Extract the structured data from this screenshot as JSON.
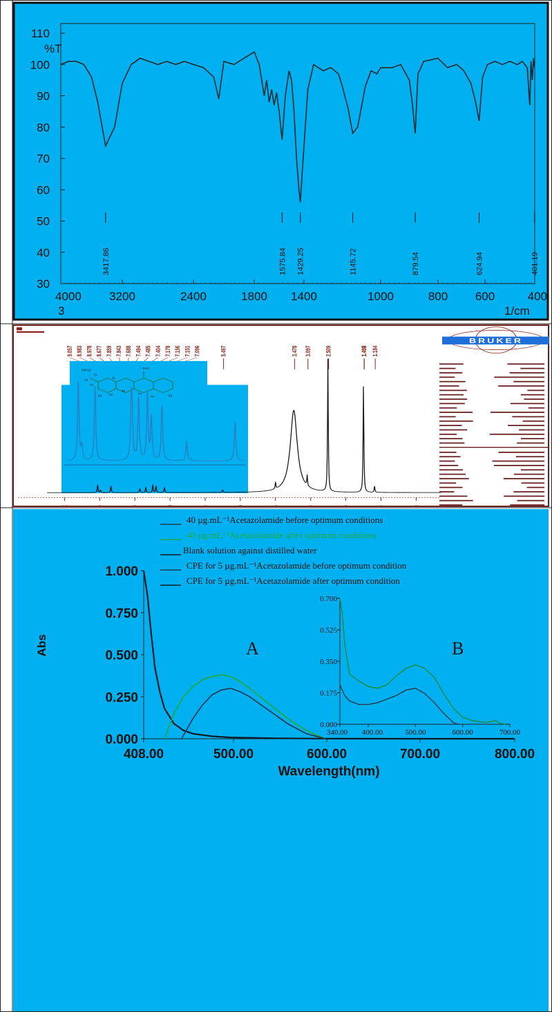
{
  "colors": {
    "panel_blue": "#00b0f0",
    "trace": "#1e2a32",
    "green": "#1faa3c",
    "nmr_border": "#6a1f1f",
    "nmr_red": "#8a1e14"
  },
  "ir": {
    "y_unit": "%T",
    "x_unit": "1/cm",
    "y_ticks": [
      "110",
      "100",
      "90",
      "80",
      "70",
      "60",
      "50",
      "40",
      "30"
    ],
    "x_ticks": [
      "4000",
      "3200",
      "2400",
      "1800",
      "1400",
      "1000",
      "800",
      "600",
      "400"
    ],
    "x_corner": "3",
    "peak_labels": [
      "3417.86",
      "1575.84",
      "1429.25",
      "1145.72",
      "879.54",
      "624.94",
      "401.19"
    ]
  },
  "nmr": {
    "brand": "BRUKER",
    "x_ticks": [
      "10",
      "9",
      "8",
      "7",
      "6",
      "5",
      "4",
      "3",
      "2",
      "1",
      "0"
    ],
    "x_unit": "ppm",
    "shift_labels": [
      "9.057",
      "8.983",
      "8.978",
      "8.677",
      "7.859",
      "7.843",
      "7.688",
      "7.494",
      "7.485",
      "7.404",
      "7.178",
      "7.156",
      "7.151",
      "7.096",
      "5.497",
      "3.478",
      "3.097",
      "2.509",
      "1.498",
      "1.497",
      "1.184"
    ],
    "integrals": [
      "1.00",
      "0.98",
      "1.03",
      "0.97",
      "1.00",
      "1.95",
      "1.02",
      "2.17",
      "1.12"
    ],
    "structure_labels": [
      "NH2",
      "O",
      "S",
      "O",
      "S",
      "N",
      "N",
      "N",
      "OH",
      "N",
      "N",
      "N"
    ]
  },
  "uv": {
    "legend": [
      "40 µg.mL⁻¹Acetazolamide before optimum conditions",
      "40 µg.mL⁻¹Acetazolamide after optimum conditions",
      "Blank solution against distilled water",
      "CPE for 5 µg.mL⁻¹Acetazolamide before optimum condition",
      "CPE for 5 µg.mL⁻¹Acetazolamide after optimum condition"
    ],
    "ylabel": "Abs",
    "xlabel": "Wavelength(nm)",
    "y_ticks": [
      "1.000",
      "0.750",
      "0.500",
      "0.250",
      "0.000"
    ],
    "x_ticks": [
      "408.00",
      "500.00",
      "600.00",
      "700.00",
      "800.00"
    ],
    "label_a": "A",
    "label_b": "B",
    "inset_y_ticks": [
      "0.700",
      "0.525",
      "0.350",
      "0.175",
      "0.000"
    ],
    "inset_x_ticks": [
      "340.00",
      "400.00",
      "500.00",
      "600.00",
      "700.00"
    ]
  },
  "chart_data": [
    {
      "type": "line",
      "xlabel": "1/cm",
      "ylabel": "%T",
      "xlim": [
        4000,
        400
      ],
      "ylim": [
        30,
        115
      ],
      "series": [
        {
          "x": [
            4000,
            3900,
            3800,
            3700,
            3600,
            3520,
            3417.86,
            3300,
            3200,
            3100,
            3000,
            2900,
            2800,
            2700,
            2600,
            2500,
            2400,
            2300,
            2200,
            2150,
            2100,
            2000,
            1900,
            1800,
            1760,
            1720,
            1700,
            1680,
            1660,
            1640,
            1620,
            1600,
            1575.84,
            1550,
            1520,
            1500,
            1480,
            1460,
            1440,
            1429.25,
            1410,
            1380,
            1350,
            1300,
            1260,
            1220,
            1200,
            1170,
            1145.72,
            1120,
            1080,
            1050,
            1020,
            1000,
            960,
            930,
            900,
            890,
            879.54,
            870,
            850,
            800,
            760,
            720,
            690,
            660,
            640,
            624.94,
            610,
            590,
            560,
            530,
            500,
            470,
            450,
            430,
            420,
            415,
            410,
            405,
            401.19
          ],
          "y": [
            100,
            101,
            101,
            100,
            96,
            88,
            74,
            80,
            94,
            100,
            102,
            101,
            100,
            101,
            100,
            101,
            100,
            99,
            96,
            89,
            101,
            100,
            102,
            104,
            100,
            90,
            95,
            88,
            92,
            87,
            91,
            85,
            76,
            90,
            98,
            95,
            85,
            70,
            60,
            56,
            68,
            92,
            100,
            98,
            99,
            97,
            93,
            86,
            78,
            80,
            93,
            98,
            97,
            99,
            99,
            100,
            95,
            88,
            78,
            97,
            101,
            102,
            99,
            100,
            98,
            94,
            88,
            82,
            96,
            100,
            101,
            100,
            101,
            100,
            101,
            99,
            87,
            101,
            95,
            102,
            99
          ]
        }
      ]
    },
    {
      "type": "line",
      "xlabel": "ppm",
      "xlim": [
        10.5,
        -0.7
      ],
      "series": [
        {
          "x": [
            10.5,
            9.3,
            9.06,
            8.98,
            8.68,
            7.86,
            7.69,
            7.49,
            7.4,
            7.16,
            5.5,
            4.0,
            3.48,
            3.1,
            2.51,
            1.498,
            1.184,
            0.0,
            -0.7
          ],
          "y": [
            0.0,
            0.0,
            0.06,
            0.02,
            0.05,
            0.03,
            0.04,
            0.06,
            0.05,
            0.04,
            0.02,
            0.05,
            0.62,
            0.08,
            1.0,
            0.82,
            0.05,
            0.0,
            0.0
          ]
        }
      ]
    },
    {
      "type": "line",
      "xlabel": "Wavelength(nm)",
      "ylabel": "Abs",
      "xlim": [
        408,
        800
      ],
      "ylim": [
        0,
        1
      ],
      "series": [
        {
          "name": "Blank solution against distilled water",
          "x": [
            408,
            412,
            416,
            420,
            425,
            430,
            440,
            450,
            460,
            480,
            500,
            550,
            600,
            700,
            800
          ],
          "y": [
            1.0,
            0.85,
            0.62,
            0.42,
            0.28,
            0.18,
            0.09,
            0.05,
            0.03,
            0.015,
            0.008,
            0.003,
            0.001,
            0.0,
            0.0
          ]
        },
        {
          "name": "40 µg.mL⁻¹Acetazolamide after optimum conditions",
          "x": [
            430,
            440,
            450,
            460,
            470,
            480,
            490,
            500,
            510,
            520,
            540,
            560,
            580,
            600
          ],
          "y": [
            0.0,
            0.15,
            0.25,
            0.31,
            0.35,
            0.37,
            0.38,
            0.37,
            0.34,
            0.3,
            0.21,
            0.12,
            0.05,
            0.0
          ]
        },
        {
          "name": "40 µg.mL⁻¹Acetazolamide before optimum conditions",
          "x": [
            448,
            460,
            470,
            480,
            490,
            500,
            510,
            520,
            540,
            560,
            580,
            600
          ],
          "y": [
            0.0,
            0.12,
            0.2,
            0.26,
            0.29,
            0.3,
            0.28,
            0.25,
            0.17,
            0.09,
            0.03,
            0.0
          ]
        }
      ]
    },
    {
      "type": "line",
      "xlim": [
        340,
        700
      ],
      "ylim": [
        0,
        0.7
      ],
      "series": [
        {
          "name": "CPE for 5 µg.mL⁻¹Acetazolamide after optimum condition",
          "x": [
            340,
            345,
            350,
            360,
            380,
            400,
            420,
            440,
            460,
            480,
            500,
            520,
            540,
            560,
            580,
            600,
            620,
            650,
            670,
            680,
            690
          ],
          "y": [
            0.7,
            0.62,
            0.45,
            0.28,
            0.24,
            0.21,
            0.2,
            0.22,
            0.27,
            0.31,
            0.33,
            0.31,
            0.26,
            0.17,
            0.09,
            0.04,
            0.02,
            0.01,
            0.02,
            0.005,
            0.0
          ]
        },
        {
          "name": "CPE for 5 µg.mL⁻¹Acetazolamide before optimum condition",
          "x": [
            340,
            350,
            360,
            380,
            400,
            420,
            440,
            460,
            480,
            500,
            520,
            540,
            560,
            580,
            590
          ],
          "y": [
            0.22,
            0.16,
            0.13,
            0.11,
            0.11,
            0.12,
            0.14,
            0.16,
            0.19,
            0.2,
            0.17,
            0.12,
            0.06,
            0.01,
            0.0
          ]
        }
      ]
    }
  ]
}
